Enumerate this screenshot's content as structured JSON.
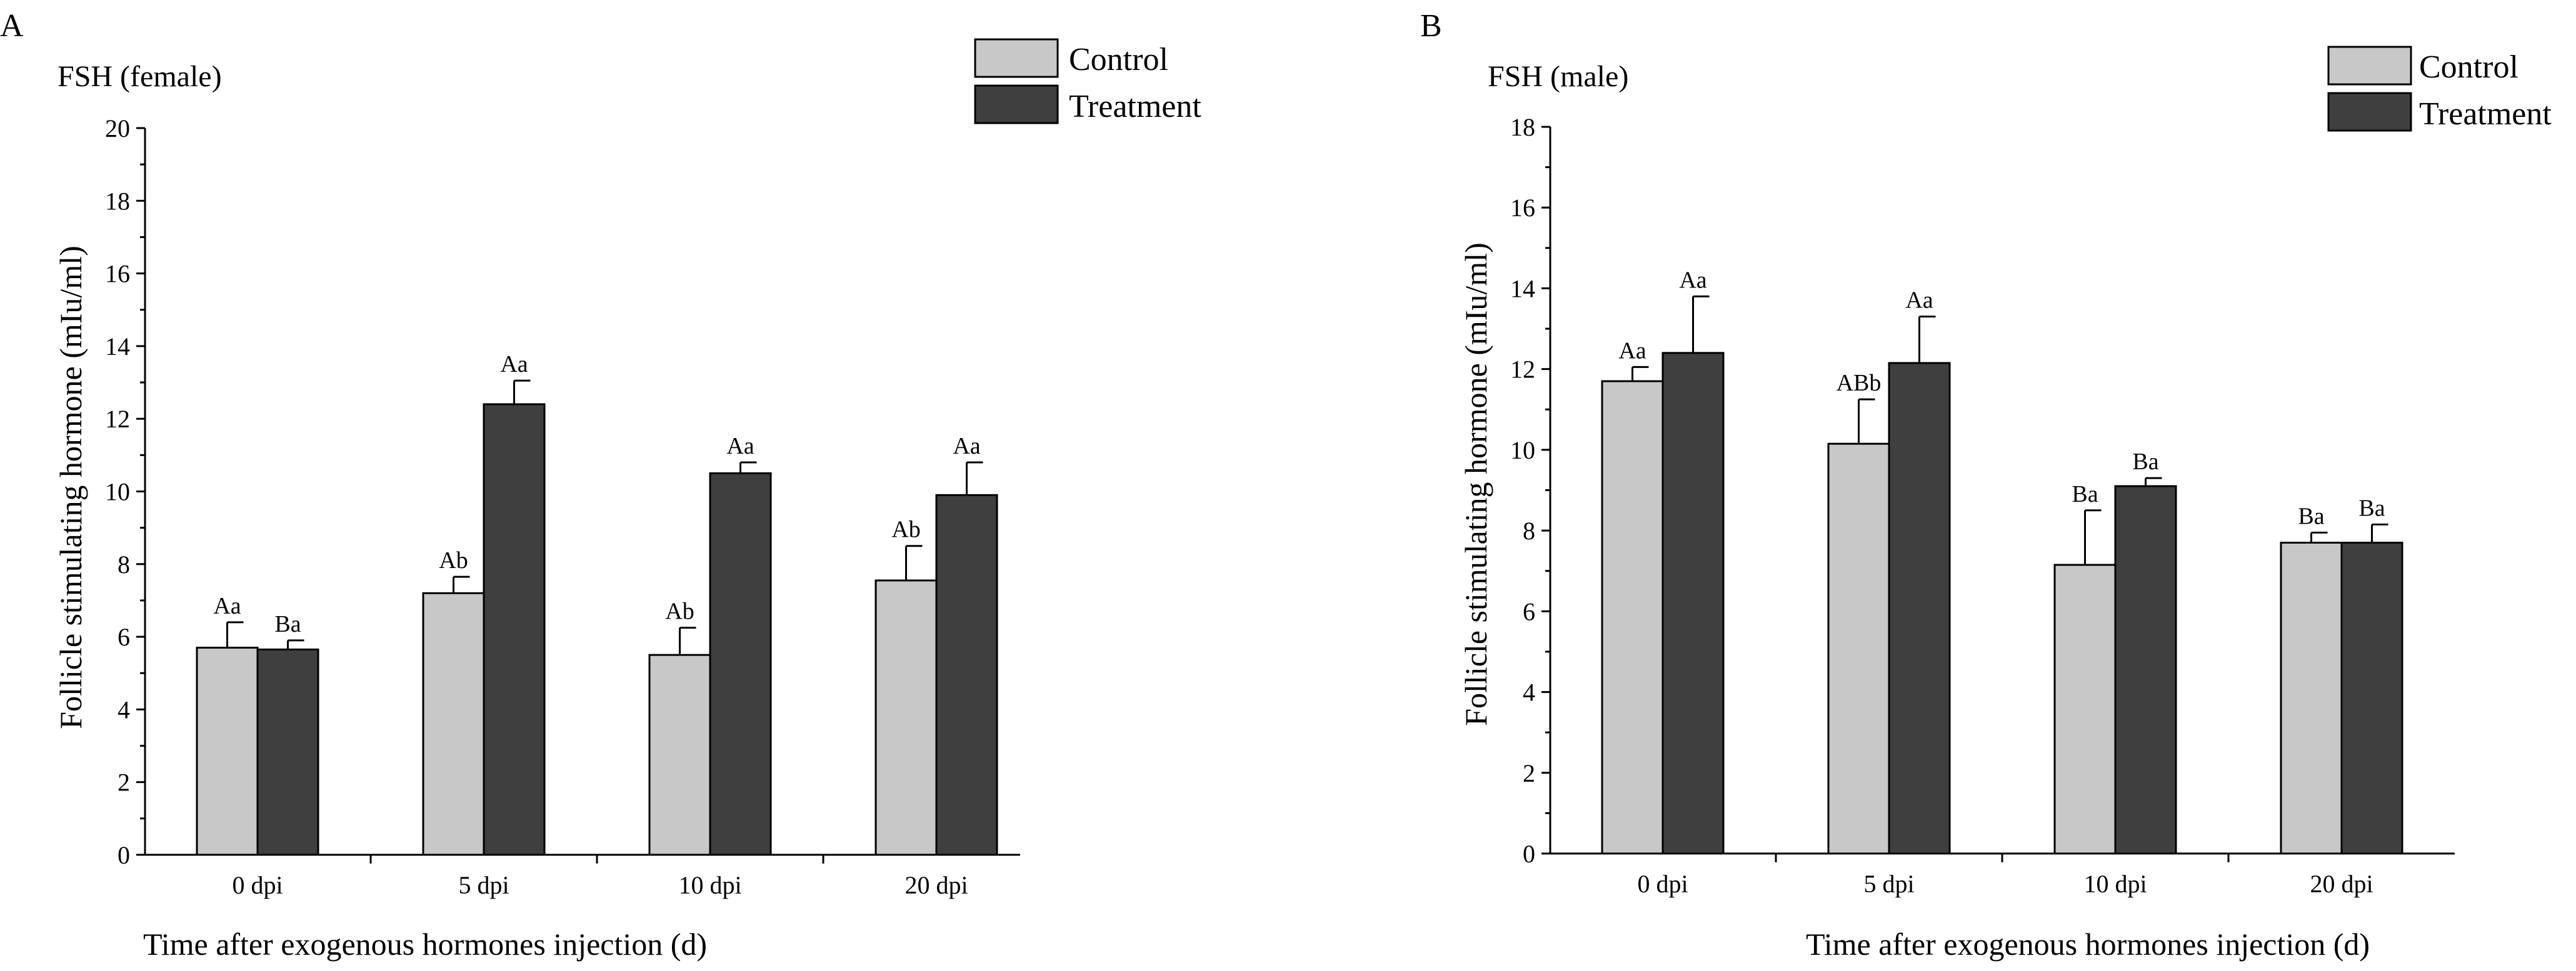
{
  "chart_data": [
    {
      "panel": "A",
      "type": "bar",
      "title": "FSH (female)",
      "xlabel": "Time after exogenous hormones injection (d)",
      "ylabel": "Follicle stimulating hormone (mIu/ml)",
      "ylim": [
        0,
        20
      ],
      "yticks": [
        0,
        2,
        4,
        6,
        8,
        10,
        12,
        14,
        16,
        18,
        20
      ],
      "categories": [
        "0 dpi",
        "5 dpi",
        "10 dpi",
        "20 dpi"
      ],
      "legend_position": "top-right",
      "series": [
        {
          "name": "Control",
          "color": "#c8c8c8",
          "values": [
            5.7,
            7.2,
            5.5,
            7.55
          ],
          "errors": [
            0.7,
            0.45,
            0.75,
            0.95
          ],
          "labels": [
            "Aa",
            "Ab",
            "Ab",
            "Ab"
          ]
        },
        {
          "name": "Treatment",
          "color": "#3f3f3f",
          "values": [
            5.65,
            12.4,
            10.5,
            9.9
          ],
          "errors": [
            0.25,
            0.65,
            0.3,
            0.9
          ],
          "labels": [
            "Ba",
            "Aa",
            "Aa",
            "Aa"
          ]
        }
      ]
    },
    {
      "panel": "B",
      "type": "bar",
      "title": "FSH (male)",
      "xlabel": "Time after exogenous hormones injection (d)",
      "ylabel": "Follicle stimulating hormone (mIu/ml)",
      "ylim": [
        0,
        18
      ],
      "yticks": [
        0,
        2,
        4,
        6,
        8,
        10,
        12,
        14,
        16,
        18
      ],
      "categories": [
        "0 dpi",
        "5 dpi",
        "10 dpi",
        "20 dpi"
      ],
      "legend_position": "top-right",
      "series": [
        {
          "name": "Control",
          "color": "#c8c8c8",
          "values": [
            11.7,
            10.15,
            7.15,
            7.7
          ],
          "errors": [
            0.35,
            1.1,
            1.35,
            0.25
          ],
          "labels": [
            "Aa",
            "ABb",
            "Ba",
            "Ba"
          ]
        },
        {
          "name": "Treatment",
          "color": "#3f3f3f",
          "values": [
            12.4,
            12.15,
            9.1,
            7.7
          ],
          "errors": [
            1.4,
            1.15,
            0.2,
            0.45
          ],
          "labels": [
            "Aa",
            "Aa",
            "Ba",
            "Ba"
          ]
        }
      ]
    }
  ]
}
